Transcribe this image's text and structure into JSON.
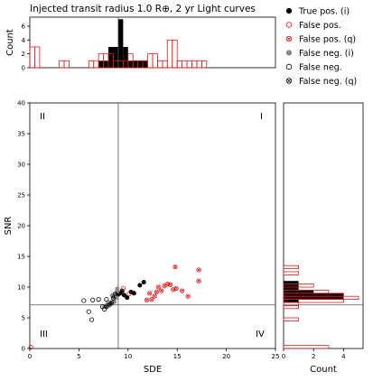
{
  "chart_data": {
    "type": "scatter",
    "title": "Injected transit radius 1.0 R⊕, 2 yr Light curves",
    "main": {
      "xlabel": "SDE",
      "ylabel": "SNR",
      "xlim": [
        0,
        25
      ],
      "ylim": [
        0,
        40
      ],
      "xticks": [
        "0",
        "5",
        "10",
        "15",
        "20",
        "25"
      ],
      "yticks": [
        "0",
        "5",
        "10",
        "15",
        "20",
        "25",
        "30",
        "35",
        "40"
      ],
      "sde_threshold": 9,
      "snr_threshold": 7.1,
      "quadrants": [
        "I",
        "II",
        "III",
        "IV"
      ]
    },
    "top_histogram": {
      "ylabel": "Count",
      "yticks": [
        "0",
        "2",
        "4",
        "6"
      ],
      "ylim": [
        0,
        7.3
      ],
      "bin_width": 0.5,
      "true_pos_bins": [
        {
          "x0": 7.0,
          "count": 1
        },
        {
          "x0": 7.5,
          "count": 1
        },
        {
          "x0": 8.0,
          "count": 3
        },
        {
          "x0": 8.5,
          "count": 3
        },
        {
          "x0": 9.0,
          "count": 7
        },
        {
          "x0": 9.5,
          "count": 3
        },
        {
          "x0": 10.0,
          "count": 1
        },
        {
          "x0": 10.5,
          "count": 1
        },
        {
          "x0": 11.0,
          "count": 1
        },
        {
          "x0": 11.5,
          "count": 1
        }
      ],
      "false_pos_bins": [
        {
          "x0": 0.0,
          "count": 3
        },
        {
          "x0": 0.5,
          "count": 3
        },
        {
          "x0": 3.0,
          "count": 1
        },
        {
          "x0": 3.5,
          "count": 1
        },
        {
          "x0": 6.0,
          "count": 1
        },
        {
          "x0": 6.5,
          "count": 1
        },
        {
          "x0": 7.0,
          "count": 2
        },
        {
          "x0": 7.5,
          "count": 2
        },
        {
          "x0": 8.0,
          "count": 2
        },
        {
          "x0": 8.5,
          "count": 1
        },
        {
          "x0": 9.0,
          "count": 1
        },
        {
          "x0": 9.5,
          "count": 1
        },
        {
          "x0": 10.0,
          "count": 2
        },
        {
          "x0": 10.5,
          "count": 1
        },
        {
          "x0": 11.0,
          "count": 1
        },
        {
          "x0": 11.5,
          "count": 1
        },
        {
          "x0": 12.0,
          "count": 2
        },
        {
          "x0": 12.5,
          "count": 2
        },
        {
          "x0": 13.0,
          "count": 1
        },
        {
          "x0": 13.5,
          "count": 1
        },
        {
          "x0": 14.0,
          "count": 4
        },
        {
          "x0": 14.5,
          "count": 4
        },
        {
          "x0": 15.0,
          "count": 1
        },
        {
          "x0": 15.5,
          "count": 1
        },
        {
          "x0": 16.0,
          "count": 1
        },
        {
          "x0": 16.5,
          "count": 1
        },
        {
          "x0": 17.0,
          "count": 1
        },
        {
          "x0": 17.5,
          "count": 1
        }
      ]
    },
    "right_histogram": {
      "xlabel": "Count",
      "xticks": [
        "0",
        "2",
        "4"
      ],
      "xlim": [
        0,
        5.3
      ],
      "bin_height": 0.5,
      "true_pos_bins": [
        {
          "y0": 7.5,
          "count": 1
        },
        {
          "y0": 8.0,
          "count": 4
        },
        {
          "y0": 8.5,
          "count": 4
        },
        {
          "y0": 9.0,
          "count": 2
        },
        {
          "y0": 9.5,
          "count": 1
        },
        {
          "y0": 10.0,
          "count": 1
        },
        {
          "y0": 10.5,
          "count": 1
        }
      ],
      "false_pos_bins": [
        {
          "y0": 0.0,
          "count": 3
        },
        {
          "y0": 4.5,
          "count": 1
        },
        {
          "y0": 6.5,
          "count": 1
        },
        {
          "y0": 7.0,
          "count": 1
        },
        {
          "y0": 7.5,
          "count": 4
        },
        {
          "y0": 8.0,
          "count": 5
        },
        {
          "y0": 8.5,
          "count": 4
        },
        {
          "y0": 9.0,
          "count": 3
        },
        {
          "y0": 10.0,
          "count": 2
        },
        {
          "y0": 12.0,
          "count": 1
        },
        {
          "y0": 13.0,
          "count": 1
        }
      ]
    },
    "series": [
      {
        "name": "True pos. (i)",
        "marker": "filled",
        "color": "#000000",
        "points": [
          [
            9.0,
            8.8
          ],
          [
            9.4,
            9.4
          ],
          [
            9.6,
            8.7
          ],
          [
            9.9,
            8.3
          ],
          [
            10.3,
            9.2
          ],
          [
            10.6,
            9.0
          ],
          [
            11.2,
            10.3
          ],
          [
            11.6,
            10.8
          ],
          [
            9.2,
            9.0
          ]
        ]
      },
      {
        "name": "False pos.",
        "marker": "open",
        "color": "#e31a1c",
        "points": [
          [
            9.5,
            9.8
          ],
          [
            10.1,
            8.9
          ],
          [
            0.1,
            0.2
          ]
        ]
      },
      {
        "name": "False pos. (q)",
        "marker": "crossed",
        "color": "#e31a1c",
        "points": [
          [
            11.9,
            7.9
          ],
          [
            12.2,
            9.0
          ],
          [
            12.4,
            8.0
          ],
          [
            12.7,
            8.5
          ],
          [
            12.9,
            9.2
          ],
          [
            13.1,
            10.0
          ],
          [
            13.4,
            9.4
          ],
          [
            13.7,
            10.2
          ],
          [
            14.0,
            10.5
          ],
          [
            14.3,
            10.4
          ],
          [
            14.6,
            9.6
          ],
          [
            14.9,
            9.8
          ],
          [
            15.5,
            9.4
          ],
          [
            16.1,
            8.5
          ],
          [
            14.8,
            13.3
          ],
          [
            17.2,
            12.8
          ],
          [
            17.2,
            11.0
          ]
        ]
      },
      {
        "name": "False neg. (i)",
        "marker": "filled",
        "color": "#888888",
        "points": [
          [
            7.6,
            6.9
          ],
          [
            7.9,
            7.2
          ],
          [
            8.2,
            7.5
          ],
          [
            8.6,
            7.6
          ],
          [
            8.8,
            8.3
          ],
          [
            8.4,
            8.6
          ],
          [
            8.9,
            9.3
          ],
          [
            8.9,
            9.7
          ]
        ]
      },
      {
        "name": "False neg.",
        "marker": "open",
        "color": "#000000",
        "points": [
          [
            5.5,
            7.8
          ],
          [
            6.0,
            6.0
          ],
          [
            6.3,
            4.7
          ],
          [
            6.4,
            7.9
          ],
          [
            7.0,
            8.0
          ],
          [
            7.4,
            6.8
          ],
          [
            7.6,
            6.4
          ],
          [
            7.8,
            8.0
          ]
        ]
      },
      {
        "name": "False neg. (q)",
        "marker": "crossed",
        "color": "#000000",
        "points": [
          [
            7.8,
            6.8
          ],
          [
            8.1,
            7.1
          ],
          [
            8.3,
            7.4
          ],
          [
            8.7,
            8.9
          ],
          [
            8.5,
            8.2
          ]
        ]
      }
    ]
  }
}
